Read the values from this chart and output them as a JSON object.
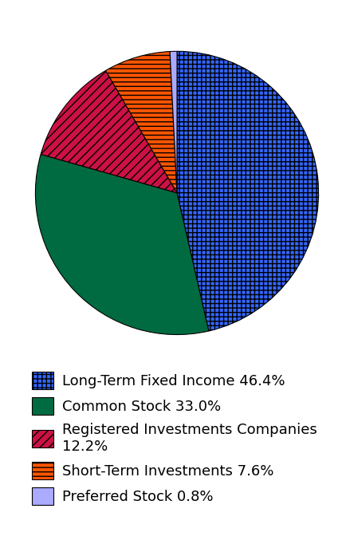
{
  "labels": [
    "Long-Term Fixed Income",
    "Common Stock",
    "Registered Investments Companies",
    "Short-Term Investments",
    "Preferred Stock"
  ],
  "values": [
    46.4,
    33.0,
    12.2,
    7.6,
    0.8
  ],
  "colors": [
    "#3366ff",
    "#006b40",
    "#cc1144",
    "#ff5500",
    "#aaaaff"
  ],
  "hatches": [
    "+",
    "~",
    "//",
    "--",
    ""
  ],
  "hatch_colors": [
    "black",
    "black",
    "black",
    "black",
    "black"
  ],
  "legend_labels": [
    "Long-Term Fixed Income 46.4%",
    "Common Stock 33.0%",
    "Registered Investments Companies\n12.2%",
    "Short-Term Investments 7.6%",
    "Preferred Stock 0.8%"
  ],
  "startangle": 90,
  "background_color": "#ffffff",
  "legend_fontsize": 13,
  "figsize": [
    4.44,
    6.72
  ]
}
